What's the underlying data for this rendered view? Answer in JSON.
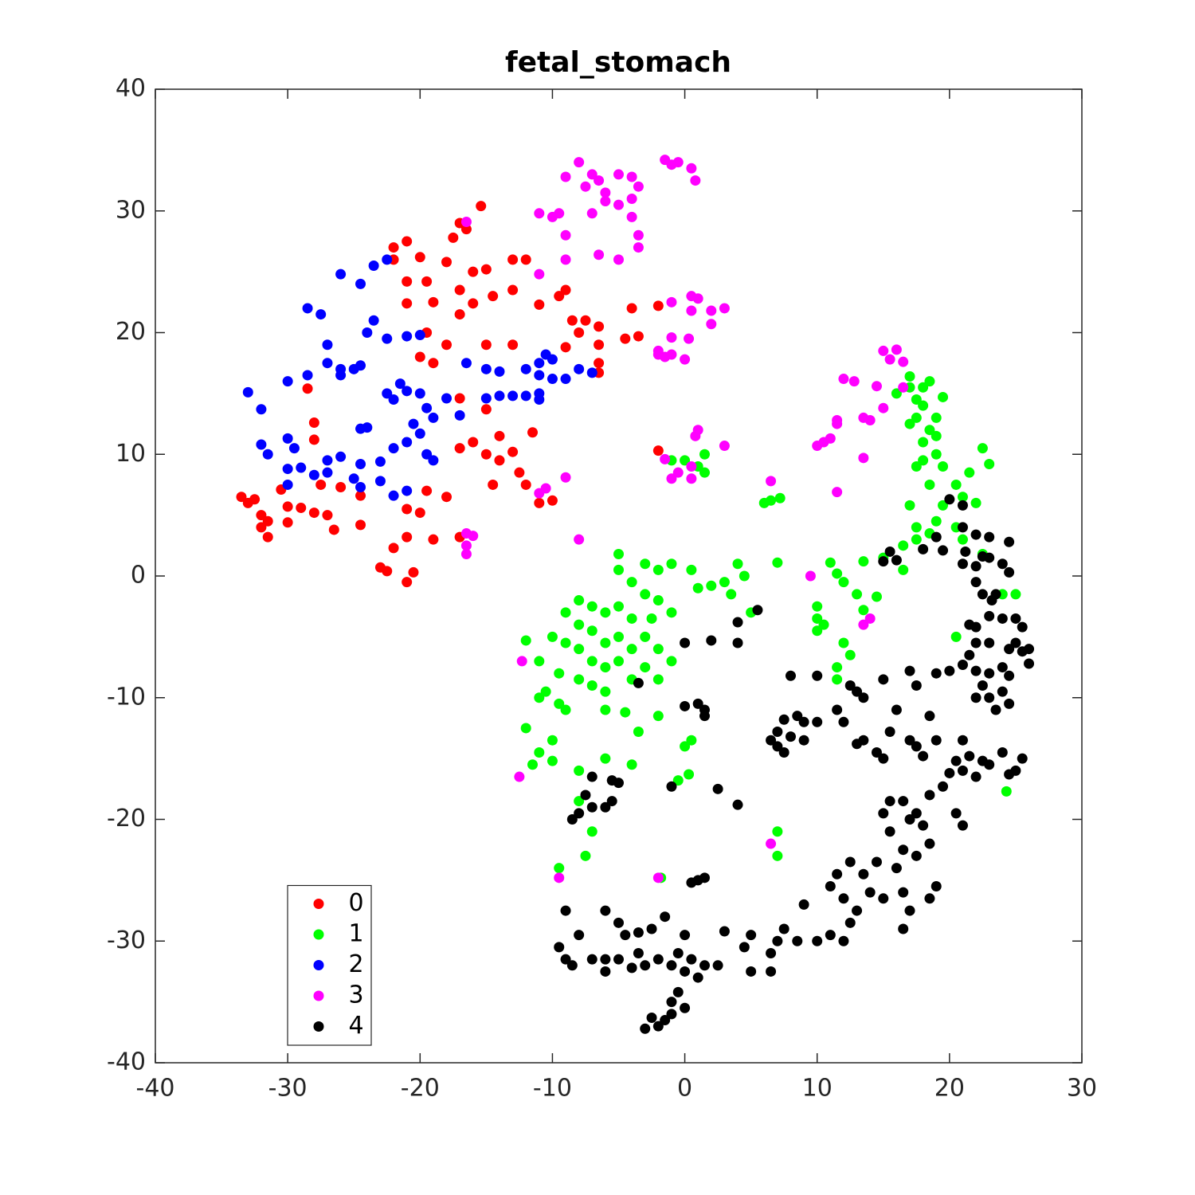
{
  "chart_data": {
    "type": "scatter",
    "title": "fetal_stomach",
    "xlim": [
      -40,
      30
    ],
    "ylim": [
      -40,
      40
    ],
    "xticks": [
      -40,
      -30,
      -20,
      -10,
      0,
      10,
      20,
      30
    ],
    "yticks": [
      -40,
      -30,
      -20,
      -10,
      0,
      10,
      20,
      30,
      40
    ],
    "legend_location": "southwest",
    "series": [
      {
        "name": "0",
        "color": "#ff0000",
        "x": [
          -15.4,
          -17,
          -16.5,
          -17.5,
          -21,
          -22,
          -20,
          -22,
          -18,
          -15,
          -13,
          -12,
          -16,
          -19.5,
          -21,
          -17,
          -14.5,
          -13,
          -9.5,
          -9,
          -11,
          -19,
          -21,
          -16,
          -17,
          -8.5,
          -7.5,
          -6.5,
          -4,
          -2,
          -3.5,
          -4.5,
          -6.5,
          -6.5,
          -6.5,
          -8,
          -9,
          -13,
          -15,
          -18,
          -19.5,
          -20,
          -19,
          -17,
          -15,
          -16,
          -14,
          -15,
          -17,
          -13,
          -14,
          -11.5,
          -12.5,
          -12,
          -14.5,
          -11,
          -10,
          -18,
          -19.5,
          -20,
          -21,
          -17,
          -19,
          -21,
          -22,
          -23,
          -21,
          -20.5,
          -22.5,
          -24.5,
          -24.5,
          -26,
          -27.5,
          -27,
          -26.5,
          -28,
          -29,
          -30,
          -30,
          -31.5,
          -32,
          -31.5,
          -32,
          -33,
          -33.5,
          -32.5,
          -30.5,
          -28,
          -28,
          -28.5,
          -2
        ],
        "y": [
          30.4,
          29,
          28.5,
          27.8,
          27.5,
          27,
          26.2,
          26,
          25.8,
          25.2,
          26,
          26,
          25,
          24.2,
          24.2,
          23.5,
          23,
          23.5,
          23,
          23.5,
          22.3,
          22.5,
          22.4,
          22.4,
          21.5,
          21,
          21,
          20.5,
          22,
          22.2,
          19.7,
          19.5,
          19,
          17.5,
          16.7,
          20,
          18.8,
          19,
          19,
          19,
          20,
          18,
          17.5,
          14.6,
          13.7,
          11,
          11.5,
          10,
          10.5,
          10.2,
          9.5,
          11.8,
          8.5,
          7.5,
          7.5,
          6,
          6.2,
          6.5,
          7,
          5.2,
          5.5,
          3.2,
          3,
          3.2,
          2.3,
          0.7,
          -0.5,
          0.3,
          0.4,
          4.2,
          6.6,
          7.3,
          7.5,
          5,
          3.8,
          5.2,
          5.6,
          5.7,
          4.4,
          4.5,
          4,
          3.2,
          5,
          6,
          6.5,
          6.3,
          7.1,
          11.2,
          12.6,
          15.4,
          10.3
        ]
      },
      {
        "name": "1",
        "color": "#00ff00",
        "x": [
          17,
          18.5,
          18,
          17,
          16,
          17.5,
          19.5,
          18,
          17.5,
          19,
          18.5,
          17,
          19,
          18,
          19,
          18,
          17.5,
          19.5,
          22.5,
          23,
          21.5,
          20.5,
          18.5,
          21,
          22,
          19.5,
          17,
          19,
          17.5,
          20.5,
          18.5,
          17.5,
          16.5,
          21,
          22.5,
          16.5,
          15,
          13.5,
          11,
          11.5,
          12,
          13,
          13.5,
          14.5,
          10,
          10,
          10.5,
          10,
          12,
          12.5,
          11.5,
          11.5,
          7,
          7.2,
          6.5,
          6,
          4,
          4.5,
          3,
          2,
          1,
          0.5,
          -1,
          -2,
          -3,
          -5,
          -5,
          -4,
          -3,
          -2,
          -1,
          -2.5,
          -4,
          -5,
          -6,
          -7,
          -8,
          -9,
          -8,
          -7,
          -6,
          -5,
          -4,
          -3,
          -2,
          -1,
          -3,
          -5,
          -6,
          -7,
          -8,
          -9,
          -10,
          -12,
          -11,
          -9.5,
          -8,
          -7,
          -6,
          -4,
          -2,
          -10.5,
          -9.5,
          -9,
          -11,
          -6,
          -4.5,
          -2,
          -3.5,
          -12,
          -11,
          -10,
          -11.5,
          -10,
          -8,
          -6,
          -4,
          0,
          0.5,
          -0.5,
          0.3,
          -8,
          -7,
          -7.5,
          -9.5,
          7,
          7,
          -1.8,
          24.3,
          25,
          24,
          20.5,
          0,
          -1,
          1,
          1.5,
          1.5,
          5,
          3.5
        ],
        "y": [
          16.4,
          16,
          15.5,
          15.5,
          15,
          14.5,
          14.7,
          14,
          13,
          13,
          12,
          12.5,
          11.5,
          11,
          10,
          9.5,
          9,
          9,
          10.5,
          9.2,
          8.5,
          7.5,
          7.5,
          6.5,
          6,
          5.8,
          5.8,
          4.5,
          4,
          4,
          3.5,
          3,
          2.5,
          3,
          1.8,
          0.5,
          1.5,
          1.2,
          1.1,
          0.2,
          -0.5,
          -1.5,
          -2.8,
          -1.7,
          -2.5,
          -3.5,
          -4,
          -4.5,
          -5.5,
          -6.5,
          -7.5,
          -8.5,
          1.1,
          6.4,
          6.2,
          6,
          1,
          0,
          -0.5,
          -0.8,
          -1,
          0.5,
          1,
          0.5,
          1,
          1.8,
          0.5,
          -0.5,
          -1.5,
          -2,
          -3,
          -3.5,
          -3.5,
          -2.5,
          -3,
          -2.5,
          -2,
          -3,
          -4,
          -4.5,
          -5.5,
          -5,
          -6,
          -5,
          -6,
          -7,
          -7.5,
          -7,
          -7.5,
          -7,
          -6,
          -5.5,
          -5,
          -5.3,
          -7,
          -8,
          -8.5,
          -9,
          -9.5,
          -8.5,
          -8.5,
          -9.5,
          -10.5,
          -11,
          -10,
          -11,
          -11.2,
          -11.5,
          -12.8,
          -12.5,
          -14.5,
          -13.5,
          -15.5,
          -15.2,
          -16,
          -15,
          -15.5,
          -14,
          -13.5,
          -16.8,
          -16.3,
          -18.5,
          -21,
          -23,
          -24,
          -21,
          -23,
          -24.8,
          -17.7,
          -1.5,
          -1.5,
          -5,
          9.5,
          9.5,
          9,
          10,
          8.5,
          -3,
          -1.5
        ]
      },
      {
        "name": "2",
        "color": "#0000ff",
        "x": [
          -23.5,
          -22.5,
          -26,
          -24.5,
          -28.5,
          -27.5,
          -23.5,
          -24,
          -22.5,
          -21,
          -20,
          -27,
          -27,
          -26,
          -25,
          -24.5,
          -26,
          -28.5,
          -30,
          -33,
          -32,
          -21.5,
          -22.5,
          -21,
          -20,
          -22,
          -19.5,
          -19,
          -20.5,
          -17,
          -18,
          -16.5,
          -15,
          -14,
          -12,
          -11,
          -10.5,
          -10,
          -11,
          -10,
          -8,
          -7,
          -9,
          -13,
          -12,
          -11,
          -11,
          -14,
          -15,
          -24,
          -24.5,
          -30,
          -29.5,
          -32,
          -31.5,
          -22,
          -21,
          -20,
          -19,
          -19.5,
          -23,
          -24.5,
          -26,
          -27,
          -30,
          -29,
          -28,
          -27,
          -25,
          -24.5,
          -23,
          -21,
          -22,
          -30
        ],
        "y": [
          25.5,
          26,
          24.8,
          24,
          22,
          21.5,
          21,
          20,
          19.5,
          19.7,
          19.8,
          19,
          17.5,
          17,
          17,
          17.3,
          16.5,
          16.5,
          16,
          15.1,
          13.7,
          15.8,
          15,
          15.2,
          15,
          14.5,
          13.8,
          13,
          12.5,
          13.2,
          14.6,
          17.5,
          17,
          16.8,
          17,
          17.5,
          18.2,
          17.8,
          16.5,
          16.2,
          17,
          16.7,
          16.2,
          14.8,
          14.8,
          15,
          14.5,
          14.8,
          14.6,
          12.2,
          12.1,
          11.3,
          10.5,
          10.8,
          10,
          10.5,
          11,
          11.7,
          9.5,
          10,
          9.4,
          9.2,
          9.8,
          9.5,
          8.8,
          8.9,
          8.3,
          8.5,
          8,
          7.3,
          7.8,
          7,
          6.6,
          7.5
        ]
      },
      {
        "name": "3",
        "color": "#ff00ff",
        "x": [
          -8,
          -7,
          -6.5,
          -7.5,
          -6,
          -5,
          -4,
          -3.5,
          -4,
          -6,
          -7,
          -5,
          -9,
          -4,
          -3.5,
          -3.5,
          -6.5,
          -5,
          -9,
          -11,
          -10,
          -9.5,
          -1.5,
          -1,
          -0.5,
          0.5,
          0.8,
          -11,
          -9,
          -1,
          0.5,
          1,
          0.5,
          2,
          3,
          2,
          0.3,
          -1,
          -2,
          -1,
          0,
          -1.5,
          -2,
          15,
          16,
          15.5,
          16.5,
          12,
          12.8,
          14.5,
          16.5,
          13.5,
          14,
          11.5,
          11.5,
          11,
          10.5,
          10,
          13.5,
          11.5,
          6.5,
          9.5,
          14,
          13.5,
          1,
          0.8,
          3,
          -1.5,
          -0.5,
          0.5,
          -1,
          0.5,
          -9,
          -10.5,
          -11,
          -16.5,
          -16,
          -16.5,
          -16.5,
          -8,
          -16.5,
          -12.3,
          -12.5,
          -9.5,
          -2,
          6.5,
          15
        ],
        "y": [
          34,
          33,
          32.5,
          32,
          31.5,
          33,
          32.8,
          32,
          31,
          30.8,
          29.8,
          30.5,
          32.8,
          29.5,
          28,
          27,
          26.4,
          26,
          28,
          29.8,
          29.5,
          29.8,
          34.2,
          33.8,
          34,
          33.5,
          32.5,
          24.8,
          26,
          22.5,
          23,
          22.8,
          21.8,
          21.8,
          22,
          20.7,
          19.5,
          19.6,
          18.5,
          18.2,
          17.8,
          18,
          18.2,
          18.5,
          18.6,
          17.8,
          17.6,
          16.2,
          16,
          15.6,
          15.5,
          13,
          12.8,
          12.8,
          12.5,
          11.3,
          11,
          10.7,
          9.7,
          6.9,
          7.8,
          0,
          -3.5,
          -4,
          12,
          11.5,
          10.7,
          9.6,
          8.5,
          9,
          8,
          8,
          8.1,
          7.2,
          6.8,
          3.5,
          3.3,
          2.5,
          1.8,
          3,
          29.1,
          -7,
          -16.5,
          -24.8,
          -24.8,
          -22,
          13.8
        ]
      },
      {
        "name": "4",
        "color": "#000000",
        "x": [
          20,
          21,
          21,
          22,
          23,
          24.5,
          19,
          19.5,
          18,
          21.2,
          21,
          22,
          22.5,
          23,
          24,
          24.5,
          15,
          15.5,
          16,
          22,
          22.5,
          23.2,
          23.5,
          24,
          23,
          22,
          21.5,
          25,
          25.5,
          25,
          25.5,
          26,
          26,
          24.5,
          23,
          22,
          21.5,
          21,
          20,
          22,
          23,
          24,
          24.5,
          22.5,
          23,
          24,
          24.5,
          22,
          23.5,
          19,
          17,
          17.5,
          15,
          16,
          18.5,
          19,
          17,
          17.5,
          18,
          15.5,
          14.5,
          15,
          13.5,
          13,
          13.5,
          12.5,
          13,
          11.5,
          12,
          10,
          8,
          7.5,
          7,
          6.5,
          7,
          7.5,
          8,
          9,
          9,
          10,
          8.5,
          21,
          20.5,
          21,
          22,
          22.5,
          21.5,
          23,
          24,
          25.5,
          25,
          24.5,
          20,
          19.5,
          18.5,
          17.5,
          16.5,
          15.5,
          15,
          15.5,
          17,
          18,
          18.5,
          17.5,
          16.5,
          16,
          14.5,
          13.5,
          12.5,
          11.5,
          11,
          12,
          13,
          14,
          15,
          16.5,
          17,
          18.5,
          19,
          16.5,
          12.5,
          11,
          12,
          10,
          8.5,
          7.5,
          7,
          6.5,
          5,
          4.5,
          5,
          6.5,
          9,
          21,
          20.5,
          -9,
          -8,
          -9.5,
          -9,
          -8.5,
          -7,
          -6,
          -6,
          -5,
          -4,
          -3.5,
          -3,
          -2.5,
          -3.5,
          -4.5,
          -5,
          -6,
          -2,
          -1,
          -0.5,
          0,
          0.5,
          1,
          1.5,
          2.5,
          3,
          -1,
          -0.5,
          0,
          -1,
          -1.5,
          -2,
          -3,
          -2.5,
          -1.5,
          0,
          1,
          1.5,
          0.5,
          -7,
          -8,
          -8.5,
          -7.5,
          -7,
          -5.5,
          -5.5,
          -6,
          -5,
          -1,
          2.5,
          4,
          0,
          1,
          1.5,
          1.5,
          0,
          2,
          4,
          4,
          5.5,
          -3.5
        ],
        "y": [
          6.3,
          5.8,
          4,
          3.4,
          3.2,
          2.8,
          3.2,
          2.1,
          2.2,
          2,
          1,
          0.8,
          1.6,
          1.5,
          1,
          0.3,
          1.2,
          2,
          1.3,
          -0.5,
          -1.5,
          -2,
          -1.5,
          -3.5,
          -3.3,
          -4.2,
          -4,
          -3.5,
          -4.2,
          -5.5,
          -6.2,
          -6,
          -7.2,
          -6,
          -5.5,
          -5.5,
          -6.5,
          -7.3,
          -7.8,
          -7.8,
          -8,
          -7.5,
          -8.2,
          -9,
          -10,
          -9.5,
          -10.5,
          -10,
          -11,
          -8,
          -7.8,
          -9,
          -8.5,
          -11,
          -11.5,
          -13.5,
          -13.5,
          -14,
          -14.8,
          -12.8,
          -14.5,
          -15,
          -13.5,
          -13.8,
          -10,
          -9,
          -9.5,
          -11,
          -12,
          -8.2,
          -8.2,
          -11.8,
          -12.8,
          -13.5,
          -14,
          -14.5,
          -13.2,
          -13.5,
          -12,
          -12,
          -11.5,
          -13.5,
          -15.2,
          -16,
          -16.5,
          -15.2,
          -14.8,
          -15.5,
          -14.5,
          -15,
          -16,
          -16.3,
          -16.2,
          -17.3,
          -18,
          -19.5,
          -18.5,
          -18.5,
          -19.5,
          -21,
          -20,
          -20.5,
          -22,
          -23,
          -22.5,
          -24,
          -23.5,
          -24.5,
          -23.5,
          -24.5,
          -25.5,
          -26.5,
          -27.5,
          -26,
          -26.5,
          -26,
          -27.5,
          -26.5,
          -25.5,
          -29,
          -28.5,
          -29.5,
          -30,
          -30,
          -30,
          -29,
          -30,
          -31,
          -29.5,
          -30.5,
          -32.5,
          -32.5,
          -27,
          -20.5,
          -19.5,
          -27.5,
          -29.5,
          -30.5,
          -31.5,
          -32,
          -31.5,
          -31.5,
          -32.5,
          -31.5,
          -32.2,
          -31,
          -32,
          -29,
          -29.3,
          -29.5,
          -28.5,
          -27.5,
          -31.5,
          -32,
          -31,
          -32.5,
          -31.5,
          -33,
          -32,
          -32,
          -29.2,
          -35,
          -34.2,
          -35.5,
          -36,
          -36.5,
          -37,
          -37.2,
          -36.3,
          -28,
          -29.5,
          -25,
          -24.8,
          -25.2,
          -19,
          -19.5,
          -20,
          -18,
          -16.5,
          -16.8,
          -18.5,
          -19,
          -17,
          -17.3,
          -17.5,
          -18.8,
          -10.7,
          -10.5,
          -11,
          -11.5,
          -5.5,
          -5.3,
          -5.5,
          -3.8,
          -2.8,
          -8.8
        ]
      }
    ]
  }
}
